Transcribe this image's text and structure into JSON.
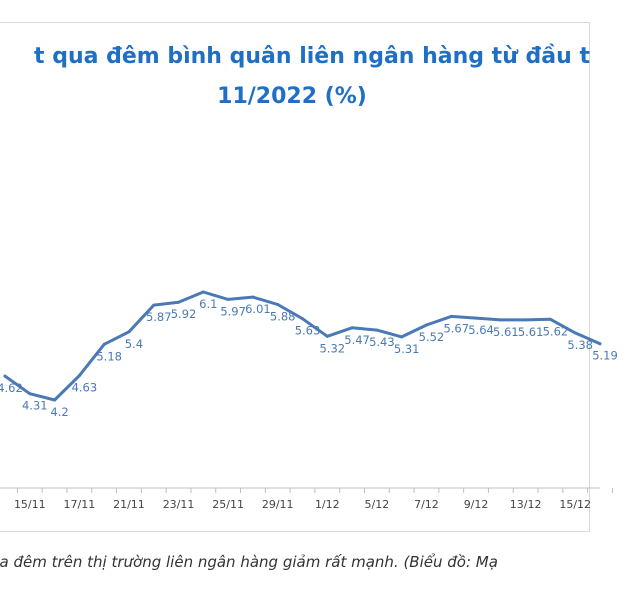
{
  "title": {
    "line1": "t qua đêm bình quân liên ngân hàng từ đầu t",
    "line2": "11/2022 (%)"
  },
  "caption": "ua đêm trên thị trường liên ngân hàng giảm rất mạnh. (Biểu đồ: Mạ",
  "chart_data": {
    "type": "line",
    "x_tick_labels": [
      "15/11",
      "17/11",
      "21/11",
      "23/11",
      "25/11",
      "29/11",
      "1/12",
      "5/12",
      "7/12",
      "9/12",
      "13/12",
      "15/12"
    ],
    "values": [
      4.62,
      4.31,
      4.2,
      4.63,
      5.18,
      5.4,
      5.87,
      5.92,
      6.1,
      5.97,
      6.01,
      5.88,
      5.63,
      5.32,
      5.47,
      5.43,
      5.31,
      5.52,
      5.67,
      5.64,
      5.61,
      5.61,
      5.62,
      5.38,
      5.19
    ],
    "value_labels": [
      "4.62",
      "4.31",
      "4.2",
      "4.63",
      "5.18",
      "5.4",
      "5.87",
      "5.92",
      "6.1",
      "5.97",
      "6.01",
      "5.88",
      "5.63",
      "5.32",
      "5.47",
      "5.43",
      "5.31",
      "5.52",
      "5.67",
      "5.64",
      "5.61",
      "5.61",
      "5.62",
      "5.38",
      "5.19"
    ],
    "line_color": "#4a79b5",
    "grid": false,
    "legend": "none"
  }
}
